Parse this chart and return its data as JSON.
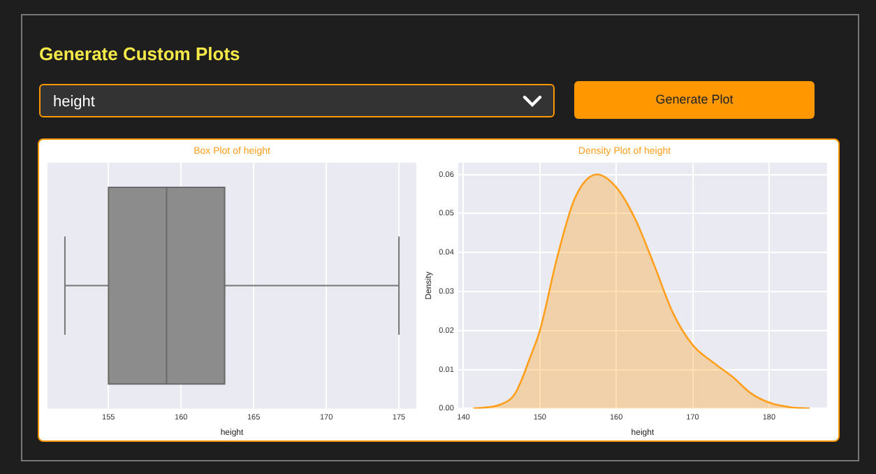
{
  "chart_data": [
    {
      "type": "other",
      "title": "Generate Custom Plots",
      "annotations": [
        "height",
        "Generate Plot"
      ]
    },
    {
      "type": "box",
      "title": "Box Plot of height",
      "xlabel": "height",
      "orientation": "horizontal",
      "categories": [
        null
      ],
      "color": "#8c8c8c",
      "boxes": [
        {
          "low": 152,
          "q1": 155,
          "median": 159,
          "q3": 163,
          "high": 175
        }
      ],
      "xlim": [
        150.8,
        176.2
      ],
      "xticks": [
        155,
        160,
        165,
        170,
        175
      ],
      "grid": "x"
    },
    {
      "type": "area",
      "title": "Density Plot of height",
      "xlabel": "height",
      "ylabel": "Density",
      "color": "#ff9f1c",
      "x": [
        141.3,
        144.8,
        146.8,
        148.9,
        150,
        152.3,
        154.6,
        157.5,
        160,
        162.5,
        165,
        167.4,
        170,
        172.9,
        175.3,
        177.7,
        180.2,
        182.6,
        185.3
      ],
      "values": [
        0,
        0.001,
        0.004,
        0.014,
        0.02,
        0.039,
        0.054,
        0.06,
        0.0567,
        0.0485,
        0.0366,
        0.0246,
        0.0163,
        0.0115,
        0.008,
        0.0038,
        0.0014,
        0.0004,
        0
      ],
      "xlim": [
        139.3,
        187.6
      ],
      "ylim": [
        0,
        0.063
      ],
      "xticks": [
        140,
        150,
        160,
        170,
        180
      ],
      "yticks": [
        {
          "value": 0,
          "label": "0.00"
        },
        {
          "value": 0.01,
          "label": "0.01"
        },
        {
          "value": 0.02,
          "label": "0.02"
        },
        {
          "value": 0.03,
          "label": "0.03"
        },
        {
          "value": 0.04,
          "label": "0.04"
        },
        {
          "value": 0.05,
          "label": "0.05"
        },
        {
          "value": 0.06,
          "label": "0.06"
        }
      ],
      "grid": true
    }
  ]
}
